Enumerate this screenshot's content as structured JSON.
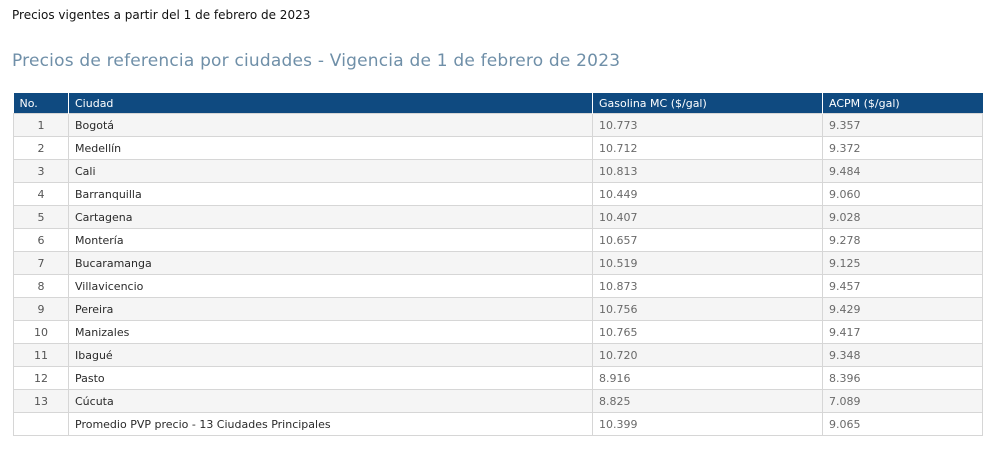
{
  "intro_text": "Precios vigentes a partir del 1 de febrero de 2023",
  "heading": "Precios de referencia por ciudades - Vigencia de 1 de febrero de 2023",
  "table": {
    "headers": [
      "No.",
      "Ciudad",
      "Gasolina MC ($/gal)",
      "ACPM ($/gal)"
    ],
    "rows": [
      {
        "no": "1",
        "city": "Bogotá",
        "gasolina": "10.773",
        "acpm": "9.357"
      },
      {
        "no": "2",
        "city": "Medellín",
        "gasolina": "10.712",
        "acpm": "9.372"
      },
      {
        "no": "3",
        "city": "Cali",
        "gasolina": "10.813",
        "acpm": "9.484"
      },
      {
        "no": "4",
        "city": "Barranquilla",
        "gasolina": "10.449",
        "acpm": "9.060"
      },
      {
        "no": "5",
        "city": "Cartagena",
        "gasolina": "10.407",
        "acpm": "9.028"
      },
      {
        "no": "6",
        "city": "Montería",
        "gasolina": "10.657",
        "acpm": "9.278"
      },
      {
        "no": "7",
        "city": "Bucaramanga",
        "gasolina": "10.519",
        "acpm": "9.125"
      },
      {
        "no": "8",
        "city": "Villavicencio",
        "gasolina": "10.873",
        "acpm": "9.457"
      },
      {
        "no": "9",
        "city": "Pereira",
        "gasolina": "10.756",
        "acpm": "9.429"
      },
      {
        "no": "10",
        "city": "Manizales",
        "gasolina": "10.765",
        "acpm": "9.417"
      },
      {
        "no": "11",
        "city": "Ibagué",
        "gasolina": "10.720",
        "acpm": "9.348"
      },
      {
        "no": "12",
        "city": "Pasto",
        "gasolina": "8.916",
        "acpm": "8.396"
      },
      {
        "no": "13",
        "city": "Cúcuta",
        "gasolina": "8.825",
        "acpm": "7.089"
      },
      {
        "no": "",
        "city": "Promedio PVP precio - 13 Ciudades Principales",
        "gasolina": "10.399",
        "acpm": "9.065"
      }
    ]
  },
  "colors": {
    "header_bg": "#0f4a80",
    "heading_text": "#6f8fa8",
    "row_alt_bg": "#f5f5f5"
  }
}
